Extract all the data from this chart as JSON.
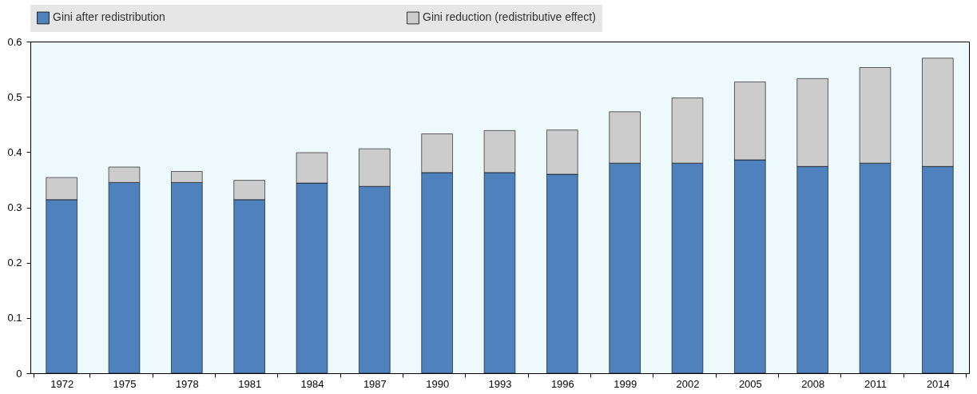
{
  "chart_data": {
    "type": "bar",
    "stacked": true,
    "categories": [
      "1972",
      "1975",
      "1978",
      "1981",
      "1984",
      "1987",
      "1990",
      "1993",
      "1996",
      "1999",
      "2002",
      "2005",
      "2008",
      "2011",
      "2014"
    ],
    "series": [
      {
        "name": "Gini after redistribution",
        "color": "#4f81bd",
        "values": [
          0.314,
          0.345,
          0.345,
          0.314,
          0.344,
          0.338,
          0.363,
          0.363,
          0.36,
          0.38,
          0.38,
          0.386,
          0.374,
          0.38,
          0.374
        ]
      },
      {
        "name": "Gini reduction (redistributive effect)",
        "color": "#cccccc",
        "values": [
          0.04,
          0.028,
          0.02,
          0.035,
          0.055,
          0.068,
          0.07,
          0.076,
          0.08,
          0.093,
          0.118,
          0.141,
          0.159,
          0.173,
          0.196
        ]
      }
    ],
    "ylim": [
      0,
      0.6
    ],
    "yticks": [
      0,
      0.1,
      0.2,
      0.3,
      0.4,
      0.5,
      0.6
    ],
    "grid": false,
    "legend": "top"
  }
}
